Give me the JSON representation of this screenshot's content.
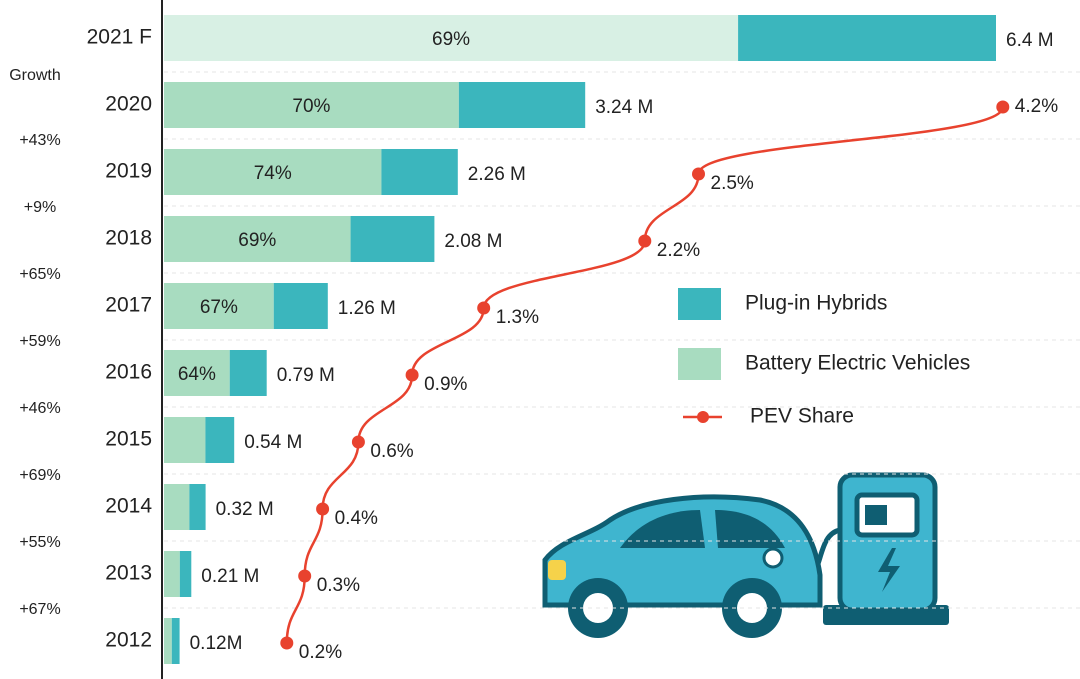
{
  "chart_data": {
    "type": "bar",
    "categories": [
      "2021 F",
      "2020",
      "2019",
      "2018",
      "2017",
      "2016",
      "2015",
      "2014",
      "2013",
      "2012"
    ],
    "values": [
      6.4,
      3.24,
      2.26,
      2.08,
      1.26,
      0.79,
      0.54,
      0.32,
      0.21,
      0.12
    ],
    "value_labels": [
      "6.4 M",
      "3.24 M",
      "2.26 M",
      "2.08 M",
      "1.26 M",
      "0.79 M",
      "0.54 M",
      "0.32 M",
      "0.21 M",
      "0.12M"
    ],
    "series": [
      {
        "name": "Battery Electric Vehicles",
        "color": "#a8dcc0",
        "values": [
          69,
          70,
          74,
          69,
          67,
          64,
          59,
          61,
          58,
          50
        ],
        "value_labels": [
          "69%",
          "70%",
          "74%",
          "69%",
          "67%",
          "64%",
          null,
          null,
          null,
          null
        ]
      },
      {
        "name": "Plug-in Hybrids",
        "color": "#3bb6bd",
        "values": [
          31,
          30,
          26,
          31,
          33,
          36,
          41,
          39,
          42,
          50
        ]
      },
      {
        "name": "PEV Share",
        "type": "line",
        "color": "#e8422e",
        "values": [
          null,
          4.2,
          2.5,
          2.2,
          1.3,
          0.9,
          0.6,
          0.4,
          0.3,
          0.2
        ],
        "value_labels": [
          null,
          "4.2%",
          "2.5%",
          "2.2%",
          "1.3%",
          "0.9%",
          "0.6%",
          "0.4%",
          "0.3%",
          "0.2%"
        ]
      }
    ],
    "growth_title": "Growth",
    "growth_labels": [
      "+43%",
      "+9%",
      "+65%",
      "+59%",
      "+46%",
      "+69%",
      "+55%",
      "+67%"
    ]
  }
}
